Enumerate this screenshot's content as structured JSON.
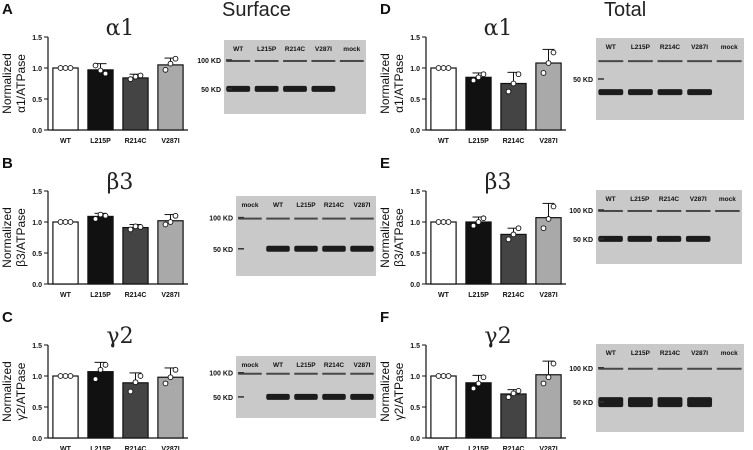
{
  "headings": {
    "surface": "Surface",
    "total": "Total"
  },
  "colors": {
    "WT": "#ffffff",
    "L215P": "#111111",
    "R214C": "#444444",
    "V287I": "#a9a9a9",
    "blot_bg": "#c9c9c9",
    "band": "#1c1c1c"
  },
  "chart_data": [
    {
      "panel": "A",
      "type": "bar",
      "title": "α1",
      "ylabel": [
        "Normalized",
        "α1/ATPase"
      ],
      "categories": [
        "WT",
        "L215P",
        "R214C",
        "V287I"
      ],
      "values": [
        1.0,
        0.97,
        0.84,
        1.05
      ],
      "errors": [
        0.0,
        0.1,
        0.06,
        0.11
      ],
      "points": [
        [
          1.0,
          1.0,
          1.0
        ],
        [
          1.04,
          0.96,
          0.91
        ],
        [
          0.82,
          0.86,
          0.88
        ],
        [
          0.97,
          1.07,
          1.15
        ]
      ],
      "ylim": [
        0,
        1.5
      ],
      "yticks": [
        "0.0",
        "0.5",
        "1.0",
        "1.5"
      ],
      "blot": {
        "lanes": [
          "WT",
          "L215P",
          "R214C",
          "V287I",
          "mock"
        ],
        "markers": [
          "100 KD",
          "50 KD"
        ],
        "band_lanes": [
          true,
          true,
          true,
          true,
          false
        ]
      }
    },
    {
      "panel": "B",
      "type": "bar",
      "title": "β3",
      "ylabel": [
        "Normalized",
        "β3/ATPase"
      ],
      "categories": [
        "WT",
        "L215P",
        "R214C",
        "V287I"
      ],
      "values": [
        1.0,
        1.09,
        0.91,
        1.02
      ],
      "errors": [
        0.0,
        0.05,
        0.05,
        0.1
      ],
      "points": [
        [
          1.0,
          1.0,
          1.0
        ],
        [
          1.05,
          1.12,
          1.1
        ],
        [
          0.88,
          0.93,
          0.92
        ],
        [
          0.96,
          1.0,
          1.1
        ]
      ],
      "ylim": [
        0,
        1.5
      ],
      "yticks": [
        "0.0",
        "0.5",
        "1.0",
        "1.5"
      ],
      "blot": {
        "lanes": [
          "mock",
          "WT",
          "L215P",
          "R214C",
          "V287I"
        ],
        "markers": [
          "100 KD",
          "50 KD"
        ],
        "band_lanes": [
          false,
          true,
          true,
          true,
          true
        ]
      }
    },
    {
      "panel": "C",
      "type": "bar",
      "title": "γ2",
      "ylabel": [
        "Normalized",
        "γ2/ATPase"
      ],
      "categories": [
        "WT",
        "L215P",
        "R214C",
        "V287I"
      ],
      "values": [
        1.0,
        1.07,
        0.89,
        0.98
      ],
      "errors": [
        0.0,
        0.15,
        0.16,
        0.15
      ],
      "points": [
        [
          1.0,
          1.0,
          1.0
        ],
        [
          0.95,
          1.1,
          1.18
        ],
        [
          0.75,
          0.9,
          1.0
        ],
        [
          0.88,
          0.98,
          1.1
        ]
      ],
      "ylim": [
        0,
        1.5
      ],
      "yticks": [
        "0.0",
        "0.5",
        "1.0",
        "1.5"
      ],
      "blot": {
        "lanes": [
          "mock",
          "WT",
          "L215P",
          "R214C",
          "V287I"
        ],
        "markers": [
          "100 KD",
          "50 KD"
        ],
        "band_lanes": [
          false,
          true,
          true,
          true,
          true
        ]
      }
    },
    {
      "panel": "D",
      "type": "bar",
      "title": "α1",
      "ylabel": [
        "Normalized",
        "α1/ATPase"
      ],
      "categories": [
        "WT",
        "L215P",
        "R214C",
        "V287I"
      ],
      "values": [
        1.0,
        0.85,
        0.75,
        1.08
      ],
      "errors": [
        0.0,
        0.07,
        0.18,
        0.22
      ],
      "points": [
        [
          1.0,
          1.0,
          1.0
        ],
        [
          0.8,
          0.85,
          0.9
        ],
        [
          0.62,
          0.75,
          0.9
        ],
        [
          0.92,
          1.08,
          1.25
        ]
      ],
      "ylim": [
        0,
        1.5
      ],
      "yticks": [
        "0.0",
        "0.5",
        "1.0",
        "1.5"
      ],
      "blot": {
        "lanes": [
          "WT",
          "L215P",
          "R214C",
          "V287I",
          "mock"
        ],
        "markers": [
          "50 KD"
        ],
        "band_lanes": [
          true,
          true,
          true,
          true,
          false
        ]
      }
    },
    {
      "panel": "E",
      "type": "bar",
      "title": "β3",
      "ylabel": [
        "Normalized",
        "β3/ATPase"
      ],
      "categories": [
        "WT",
        "L215P",
        "R214C",
        "V287I"
      ],
      "values": [
        1.0,
        1.0,
        0.8,
        1.07
      ],
      "errors": [
        0.0,
        0.08,
        0.1,
        0.23
      ],
      "points": [
        [
          1.0,
          1.0,
          1.0
        ],
        [
          0.94,
          1.0,
          1.06
        ],
        [
          0.72,
          0.8,
          0.9
        ],
        [
          0.9,
          1.05,
          1.25
        ]
      ],
      "ylim": [
        0,
        1.5
      ],
      "yticks": [
        "0.0",
        "0.5",
        "1.0",
        "1.5"
      ],
      "blot": {
        "lanes": [
          "WT",
          "L215P",
          "R214C",
          "V287I",
          "mock"
        ],
        "markers": [
          "100 KD",
          "50 KD"
        ],
        "band_lanes": [
          true,
          true,
          true,
          true,
          false
        ]
      }
    },
    {
      "panel": "F",
      "type": "bar",
      "title": "γ2",
      "ylabel": [
        "Normalized",
        "γ2/ATPase"
      ],
      "categories": [
        "WT",
        "L215P",
        "R214C",
        "V287I"
      ],
      "values": [
        1.0,
        0.89,
        0.71,
        1.02
      ],
      "errors": [
        0.0,
        0.12,
        0.07,
        0.22
      ],
      "points": [
        [
          1.0,
          1.0,
          1.0
        ],
        [
          0.8,
          0.88,
          0.98
        ],
        [
          0.66,
          0.72,
          0.76
        ],
        [
          0.88,
          0.98,
          1.2
        ]
      ],
      "ylim": [
        0,
        1.5
      ],
      "yticks": [
        "0.0",
        "0.5",
        "1.0",
        "1.5"
      ],
      "blot": {
        "lanes": [
          "WT",
          "L215P",
          "R214C",
          "V287I",
          "mock"
        ],
        "markers": [
          "100 KD",
          "50 KD"
        ],
        "band_lanes": [
          true,
          true,
          true,
          true,
          false
        ]
      }
    }
  ]
}
